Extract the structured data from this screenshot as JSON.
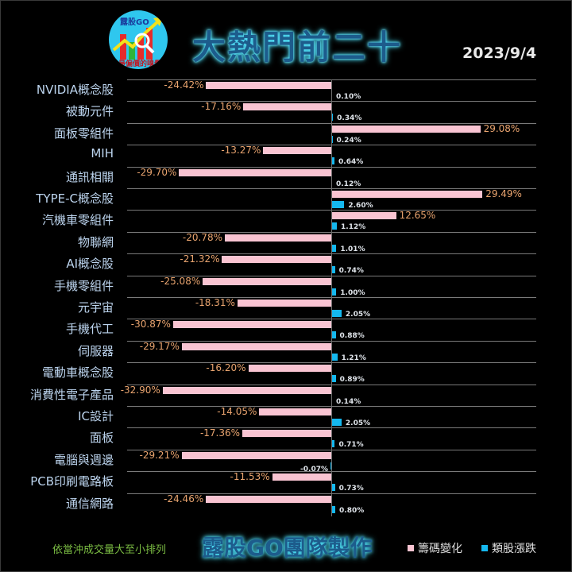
{
  "header": {
    "logo_brand": "露股GO",
    "logo_motto": "最偏價的嗅覺",
    "title": "大熱門前二十",
    "date": "2023/9/4"
  },
  "footer": {
    "note": "依當沖成交量大至小排列",
    "credit": "露股GO團隊製作",
    "legend": [
      {
        "label": "籌碼變化",
        "color": "#f9c4d2"
      },
      {
        "label": "類股漲跌",
        "color": "#15b8ef"
      }
    ]
  },
  "chart_data": {
    "type": "bar",
    "orientation": "horizontal",
    "title": "大熱門前二十",
    "subtitle": "2023/9/4",
    "xlabel": "",
    "ylabel": "",
    "grid": true,
    "legend_position": "bottom-right",
    "sort_note": "依當沖成交量大至小排列",
    "categories": [
      "NVIDIA概念股",
      "被動元件",
      "面板零組件",
      "MIH",
      "通訊相關",
      "TYPE-C概念股",
      "汽機車零組件",
      "物聯網",
      "AI概念股",
      "手機零組件",
      "元宇宙",
      "手機代工",
      "伺服器",
      "電動車概念股",
      "消費性電子產品",
      "IC設計",
      "面板",
      "電腦與週邊",
      "PCB印刷電路板",
      "通信網路"
    ],
    "series": [
      {
        "name": "籌碼變化",
        "color": "#f9c4d2",
        "unit": "%",
        "values": [
          -24.42,
          -17.16,
          29.08,
          -13.27,
          -29.7,
          29.49,
          12.65,
          -20.78,
          -21.32,
          -25.08,
          -18.31,
          -30.87,
          -29.17,
          -16.2,
          -32.9,
          -14.05,
          -17.36,
          -29.21,
          -11.53,
          -24.46
        ],
        "labels": [
          "-24.42%",
          "-17.16%",
          "29.08%",
          "-13.27%",
          "-29.70%",
          "29.49%",
          "12.65%",
          "-20.78%",
          "-21.32%",
          "-25.08%",
          "-18.31%",
          "-30.87%",
          "-29.17%",
          "-16.20%",
          "-32.90%",
          "-14.05%",
          "-17.36%",
          "-29.21%",
          "-11.53%",
          "-24.46%"
        ]
      },
      {
        "name": "類股漲跌",
        "color": "#15b8ef",
        "unit": "%",
        "values": [
          0.1,
          0.34,
          0.24,
          0.64,
          0.12,
          2.6,
          1.12,
          1.01,
          0.74,
          1.0,
          2.05,
          0.88,
          1.21,
          0.89,
          0.14,
          2.05,
          0.71,
          -0.07,
          0.73,
          0.8
        ],
        "labels": [
          "0.10%",
          "0.34%",
          "0.24%",
          "0.64%",
          "0.12%",
          "2.60%",
          "1.12%",
          "1.01%",
          "0.74%",
          "1.00%",
          "2.05%",
          "0.88%",
          "1.21%",
          "0.89%",
          "0.14%",
          "2.05%",
          "0.71%",
          "-0.07%",
          "0.73%",
          "0.80%"
        ]
      }
    ]
  }
}
